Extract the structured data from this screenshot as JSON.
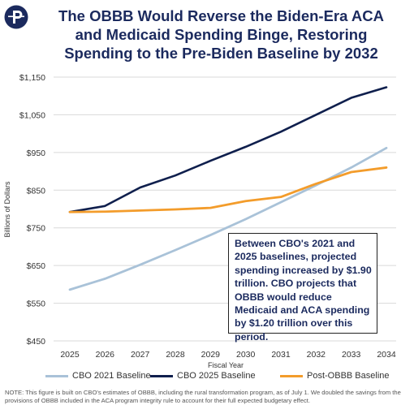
{
  "title": {
    "line1": "The OBBB Would Reverse the Biden-Era ACA",
    "line2": "and Medicaid Spending Binge, Restoring",
    "line3": "Spending to the Pre-Biden Baseline by 2032"
  },
  "logo": {
    "icon": "paragon-p-logo",
    "color": "#1b2a5e"
  },
  "annotation": "Between CBO's 2021 and 2025 baselines, projected spending increased by $1.90 trillion. CBO projects that OBBB would reduce Medicaid and ACA spending by $1.20 trillion over this period.",
  "note": "NOTE: This figure is built on CBO's estimates of OBBB, including the rural transformation program, as of July 1. We doubled the savings from the provisions of OBBB included in the ACA program integrity rule to account for their full expected budgetary effect.",
  "chart_data": {
    "type": "line",
    "title": "The OBBB Would Reverse the Biden-Era ACA and Medicaid Spending Binge, Restoring Spending to the Pre-Biden Baseline by 2032",
    "xlabel": "Fiscal Year",
    "ylabel": "Billions of Dollars",
    "x": [
      "2025",
      "2026",
      "2027",
      "2028",
      "2029",
      "2030",
      "2031",
      "2032",
      "2033",
      "2034"
    ],
    "ylim": [
      450,
      1150
    ],
    "yticks": [
      450,
      550,
      650,
      750,
      850,
      950,
      1050,
      1150
    ],
    "ytick_labels": [
      "$450",
      "$550",
      "$650",
      "$750",
      "$850",
      "$950",
      "$1,050",
      "$1,150"
    ],
    "grid": "horizontal",
    "legend_position": "bottom",
    "series": [
      {
        "name": "CBO 2021 Baseline",
        "color": "#a9c2d8",
        "values": [
          586,
          615,
          652,
          691,
          731,
          773,
          818,
          863,
          910,
          962
        ]
      },
      {
        "name": "CBO 2025 Baseline",
        "color": "#0f1f4d",
        "values": [
          792,
          808,
          857,
          889,
          928,
          965,
          1005,
          1050,
          1095,
          1123
        ]
      },
      {
        "name": "Post-OBBB Baseline",
        "color": "#f39c2b",
        "values": [
          792,
          793,
          796,
          799,
          803,
          821,
          832,
          867,
          898,
          910
        ]
      }
    ]
  }
}
